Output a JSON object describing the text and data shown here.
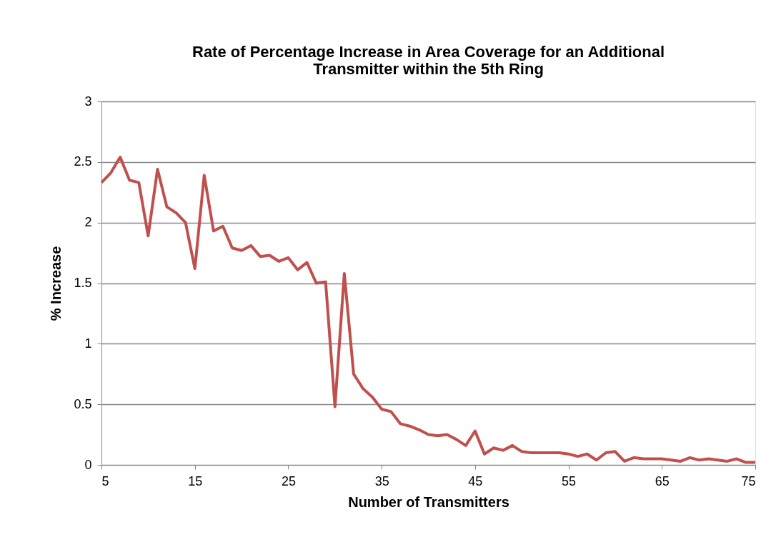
{
  "chart_data": {
    "type": "line",
    "title": [
      "Rate of Percentage Increase in Area Coverage for an Additional",
      "Transmitter within the 5th Ring"
    ],
    "xlabel": "Number of Transmitters",
    "ylabel": "% Increase",
    "x": [
      5,
      6,
      7,
      8,
      9,
      10,
      11,
      12,
      13,
      14,
      15,
      16,
      17,
      18,
      19,
      20,
      21,
      22,
      23,
      24,
      25,
      26,
      27,
      28,
      29,
      30,
      31,
      32,
      33,
      34,
      35,
      36,
      37,
      38,
      39,
      40,
      41,
      42,
      43,
      44,
      45,
      46,
      47,
      48,
      49,
      50,
      51,
      52,
      53,
      54,
      55,
      56,
      57,
      58,
      59,
      60,
      61,
      62,
      63,
      64,
      65,
      66,
      67,
      68,
      69,
      70,
      71,
      72,
      73,
      74,
      75
    ],
    "series": [
      {
        "color": "#c0504d",
        "values": [
          2.33,
          2.41,
          2.54,
          2.35,
          2.33,
          1.89,
          2.44,
          2.13,
          2.08,
          2.0,
          1.62,
          2.39,
          1.93,
          1.97,
          1.79,
          1.77,
          1.81,
          1.72,
          1.73,
          1.68,
          1.71,
          1.61,
          1.67,
          1.5,
          1.51,
          0.48,
          1.58,
          0.75,
          0.63,
          0.56,
          0.46,
          0.44,
          0.34,
          0.32,
          0.29,
          0.25,
          0.24,
          0.25,
          0.21,
          0.16,
          0.28,
          0.09,
          0.14,
          0.12,
          0.16,
          0.11,
          0.1,
          0.1,
          0.1,
          0.1,
          0.09,
          0.07,
          0.09,
          0.04,
          0.1,
          0.11,
          0.03,
          0.06,
          0.05,
          0.05,
          0.05,
          0.04,
          0.03,
          0.06,
          0.04,
          0.05,
          0.04,
          0.03,
          0.05,
          0.02,
          0.02
        ]
      }
    ],
    "xlim": [
      5,
      75
    ],
    "xticks": [
      5,
      15,
      25,
      35,
      45,
      55,
      65,
      75
    ],
    "ylim": [
      0,
      3
    ],
    "yticks": [
      0,
      0.5,
      1,
      1.5,
      2,
      2.5,
      3
    ],
    "grid": "y",
    "marker": "none",
    "line_style": "solid"
  }
}
